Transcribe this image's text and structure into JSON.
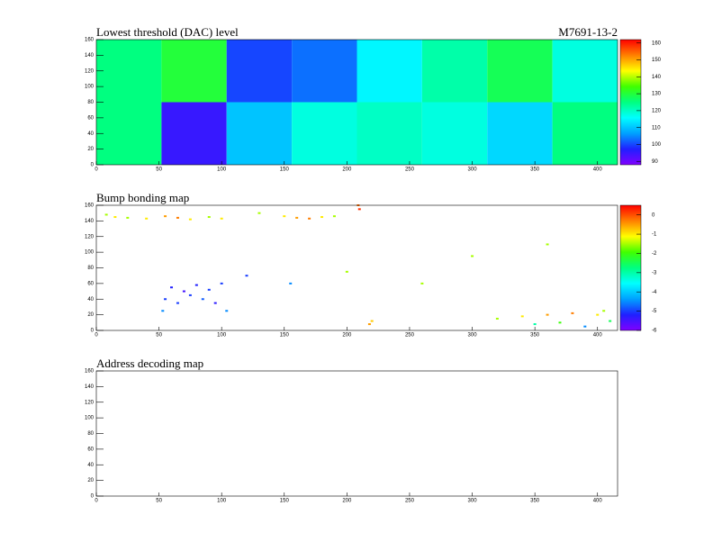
{
  "chart_data": [
    {
      "type": "heatmap",
      "title": "Lowest threshold (DAC) level",
      "label": "M7691-13-2",
      "x_edges": [
        0,
        52,
        104,
        156,
        208,
        260,
        312,
        364,
        416
      ],
      "y_edges": [
        0,
        80,
        160
      ],
      "z": [
        [
          125,
          95,
          110,
          118,
          120,
          118,
          112,
          125
        ],
        [
          125,
          130,
          100,
          103,
          115,
          122,
          128,
          118
        ]
      ],
      "xlim": [
        0,
        416
      ],
      "ylim": [
        0,
        160
      ],
      "xticks": [
        0,
        50,
        100,
        150,
        200,
        250,
        300,
        350,
        400
      ],
      "yticks": [
        0,
        20,
        40,
        60,
        80,
        100,
        120,
        140,
        160
      ],
      "zlim": [
        88,
        162
      ],
      "zticks": [
        90,
        100,
        110,
        120,
        130,
        140,
        150,
        160
      ],
      "palette": [
        "#8000ff",
        "#2020ff",
        "#00a0ff",
        "#00ffff",
        "#00ff80",
        "#40ff00",
        "#ffff00",
        "#ff8000",
        "#ff0000"
      ]
    },
    {
      "type": "scatter-map",
      "title": "Bump bonding map",
      "x": [
        8,
        15,
        25,
        40,
        55,
        65,
        75,
        90,
        100,
        150,
        160,
        170,
        180,
        190,
        210,
        209,
        218,
        220,
        55,
        60,
        65,
        70,
        75,
        80,
        85,
        90,
        95,
        100,
        53,
        104,
        130,
        200,
        260,
        300,
        360,
        120,
        155,
        320,
        340,
        360,
        380,
        400,
        410,
        390,
        370,
        350,
        405
      ],
      "y": [
        148,
        145,
        144,
        143,
        146,
        144,
        142,
        145,
        143,
        146,
        144,
        143,
        145,
        146,
        155,
        160,
        8,
        12,
        40,
        55,
        35,
        50,
        45,
        58,
        40,
        52,
        35,
        60,
        25,
        25,
        150,
        75,
        60,
        95,
        110,
        70,
        60,
        15,
        18,
        20,
        22,
        20,
        12,
        5,
        10,
        8,
        25
      ],
      "z": [
        -1.5,
        -1,
        -1.5,
        -1,
        -0.5,
        -0.3,
        -1,
        -1.5,
        -1,
        -1,
        -0.5,
        -0.3,
        -1,
        -1.5,
        0.2,
        -0.2,
        -0.5,
        -0.8,
        -5,
        -5.2,
        -5,
        -5.5,
        -5,
        -5.2,
        -4.8,
        -5,
        -5.3,
        -5,
        -4.5,
        -4.5,
        -1.5,
        -1.5,
        -1.5,
        -1.5,
        -1.5,
        -5,
        -4.5,
        -1.5,
        -1,
        -0.5,
        -0.3,
        -1,
        -2.5,
        -4.5,
        -2,
        -3,
        -1.5
      ],
      "xlim": [
        0,
        416
      ],
      "ylim": [
        0,
        160
      ],
      "xticks": [
        0,
        50,
        100,
        150,
        200,
        250,
        300,
        350,
        400
      ],
      "yticks": [
        0,
        20,
        40,
        60,
        80,
        100,
        120,
        140,
        160
      ],
      "zlim": [
        -6,
        0.5
      ],
      "zticks": [
        0,
        -1,
        -2,
        -3,
        -4,
        -5,
        -6
      ],
      "palette": [
        "#8000ff",
        "#2020ff",
        "#00a0ff",
        "#00ffff",
        "#00ff80",
        "#40ff00",
        "#ffff00",
        "#ff8000",
        "#ff0000"
      ]
    },
    {
      "type": "empty",
      "title": "Address decoding map",
      "xlim": [
        0,
        416
      ],
      "ylim": [
        0,
        160
      ],
      "xticks": [
        0,
        50,
        100,
        150,
        200,
        250,
        300,
        350,
        400
      ],
      "yticks": [
        0,
        20,
        40,
        60,
        80,
        100,
        120,
        140,
        160
      ]
    }
  ]
}
